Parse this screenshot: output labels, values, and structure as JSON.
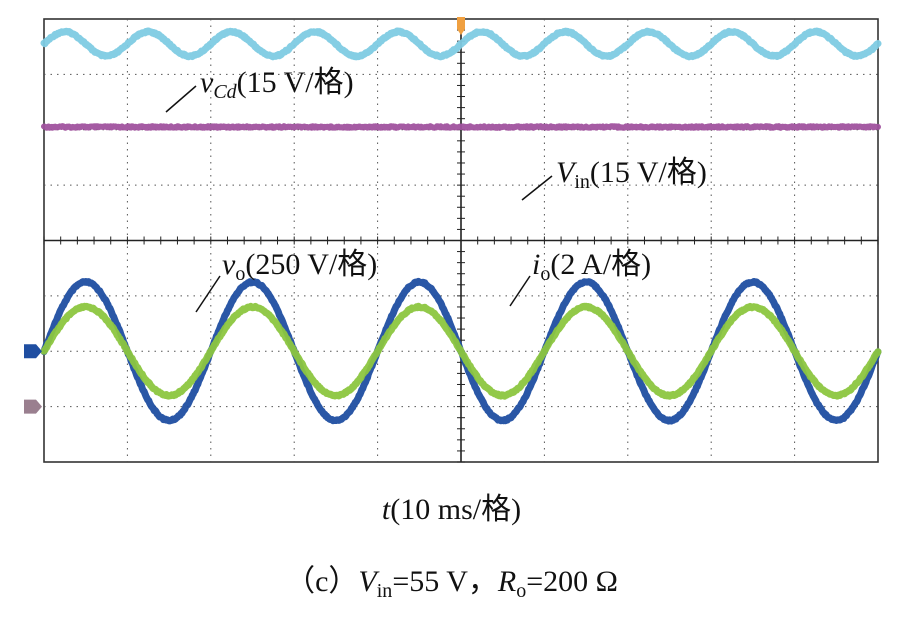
{
  "chart_data": [
    {
      "type": "line",
      "panel": "top",
      "series": [
        {
          "name_var": "v",
          "name_sub": "Cd",
          "name_scale": "(15 V/格)",
          "color": "#7ecbe3",
          "waveform": "sine",
          "offset_div": 1.55,
          "amplitude_div": 0.22,
          "period_div": 1.0,
          "phase_div": 0.0
        },
        {
          "name_var": "V",
          "name_sub": "in",
          "name_scale": "(15 V/格)",
          "color": "#a0529e",
          "waveform": "dc",
          "offset_div": 0.05,
          "amplitude_div": 0.0
        }
      ]
    },
    {
      "type": "line",
      "panel": "bottom",
      "series": [
        {
          "name_var": "v",
          "name_sub": "o",
          "name_scale": "(250 V/格)",
          "color": "#1f4ea1",
          "waveform": "sine",
          "offset_div": 0.0,
          "amplitude_div": 1.25,
          "period_div": 2.0,
          "phase_div": 0.0
        },
        {
          "name_var": "i",
          "name_sub": "o",
          "name_scale": "(2 A/格)",
          "color": "#8cc63f",
          "waveform": "sine",
          "offset_div": 0.0,
          "amplitude_div": 0.8,
          "period_div": 2.0,
          "phase_div": 0.0
        }
      ]
    }
  ],
  "scope": {
    "divisions_x": 10,
    "divisions_y": 8,
    "grid_color": "#555555",
    "frame_color": "#333333",
    "trigger_marker_color": "#f0a040",
    "channel_markers": [
      {
        "color": "#1f4ea1"
      },
      {
        "color": "#9a7f8f"
      }
    ]
  },
  "xlabel": {
    "var": "t",
    "scale": "(10 ms/格)"
  },
  "caption": {
    "prefix": "（c）",
    "vin_var": "V",
    "vin_sub": "in",
    "vin_value": "=55 V，",
    "ro_var": "R",
    "ro_sub": "o",
    "ro_value": "=200 Ω"
  }
}
